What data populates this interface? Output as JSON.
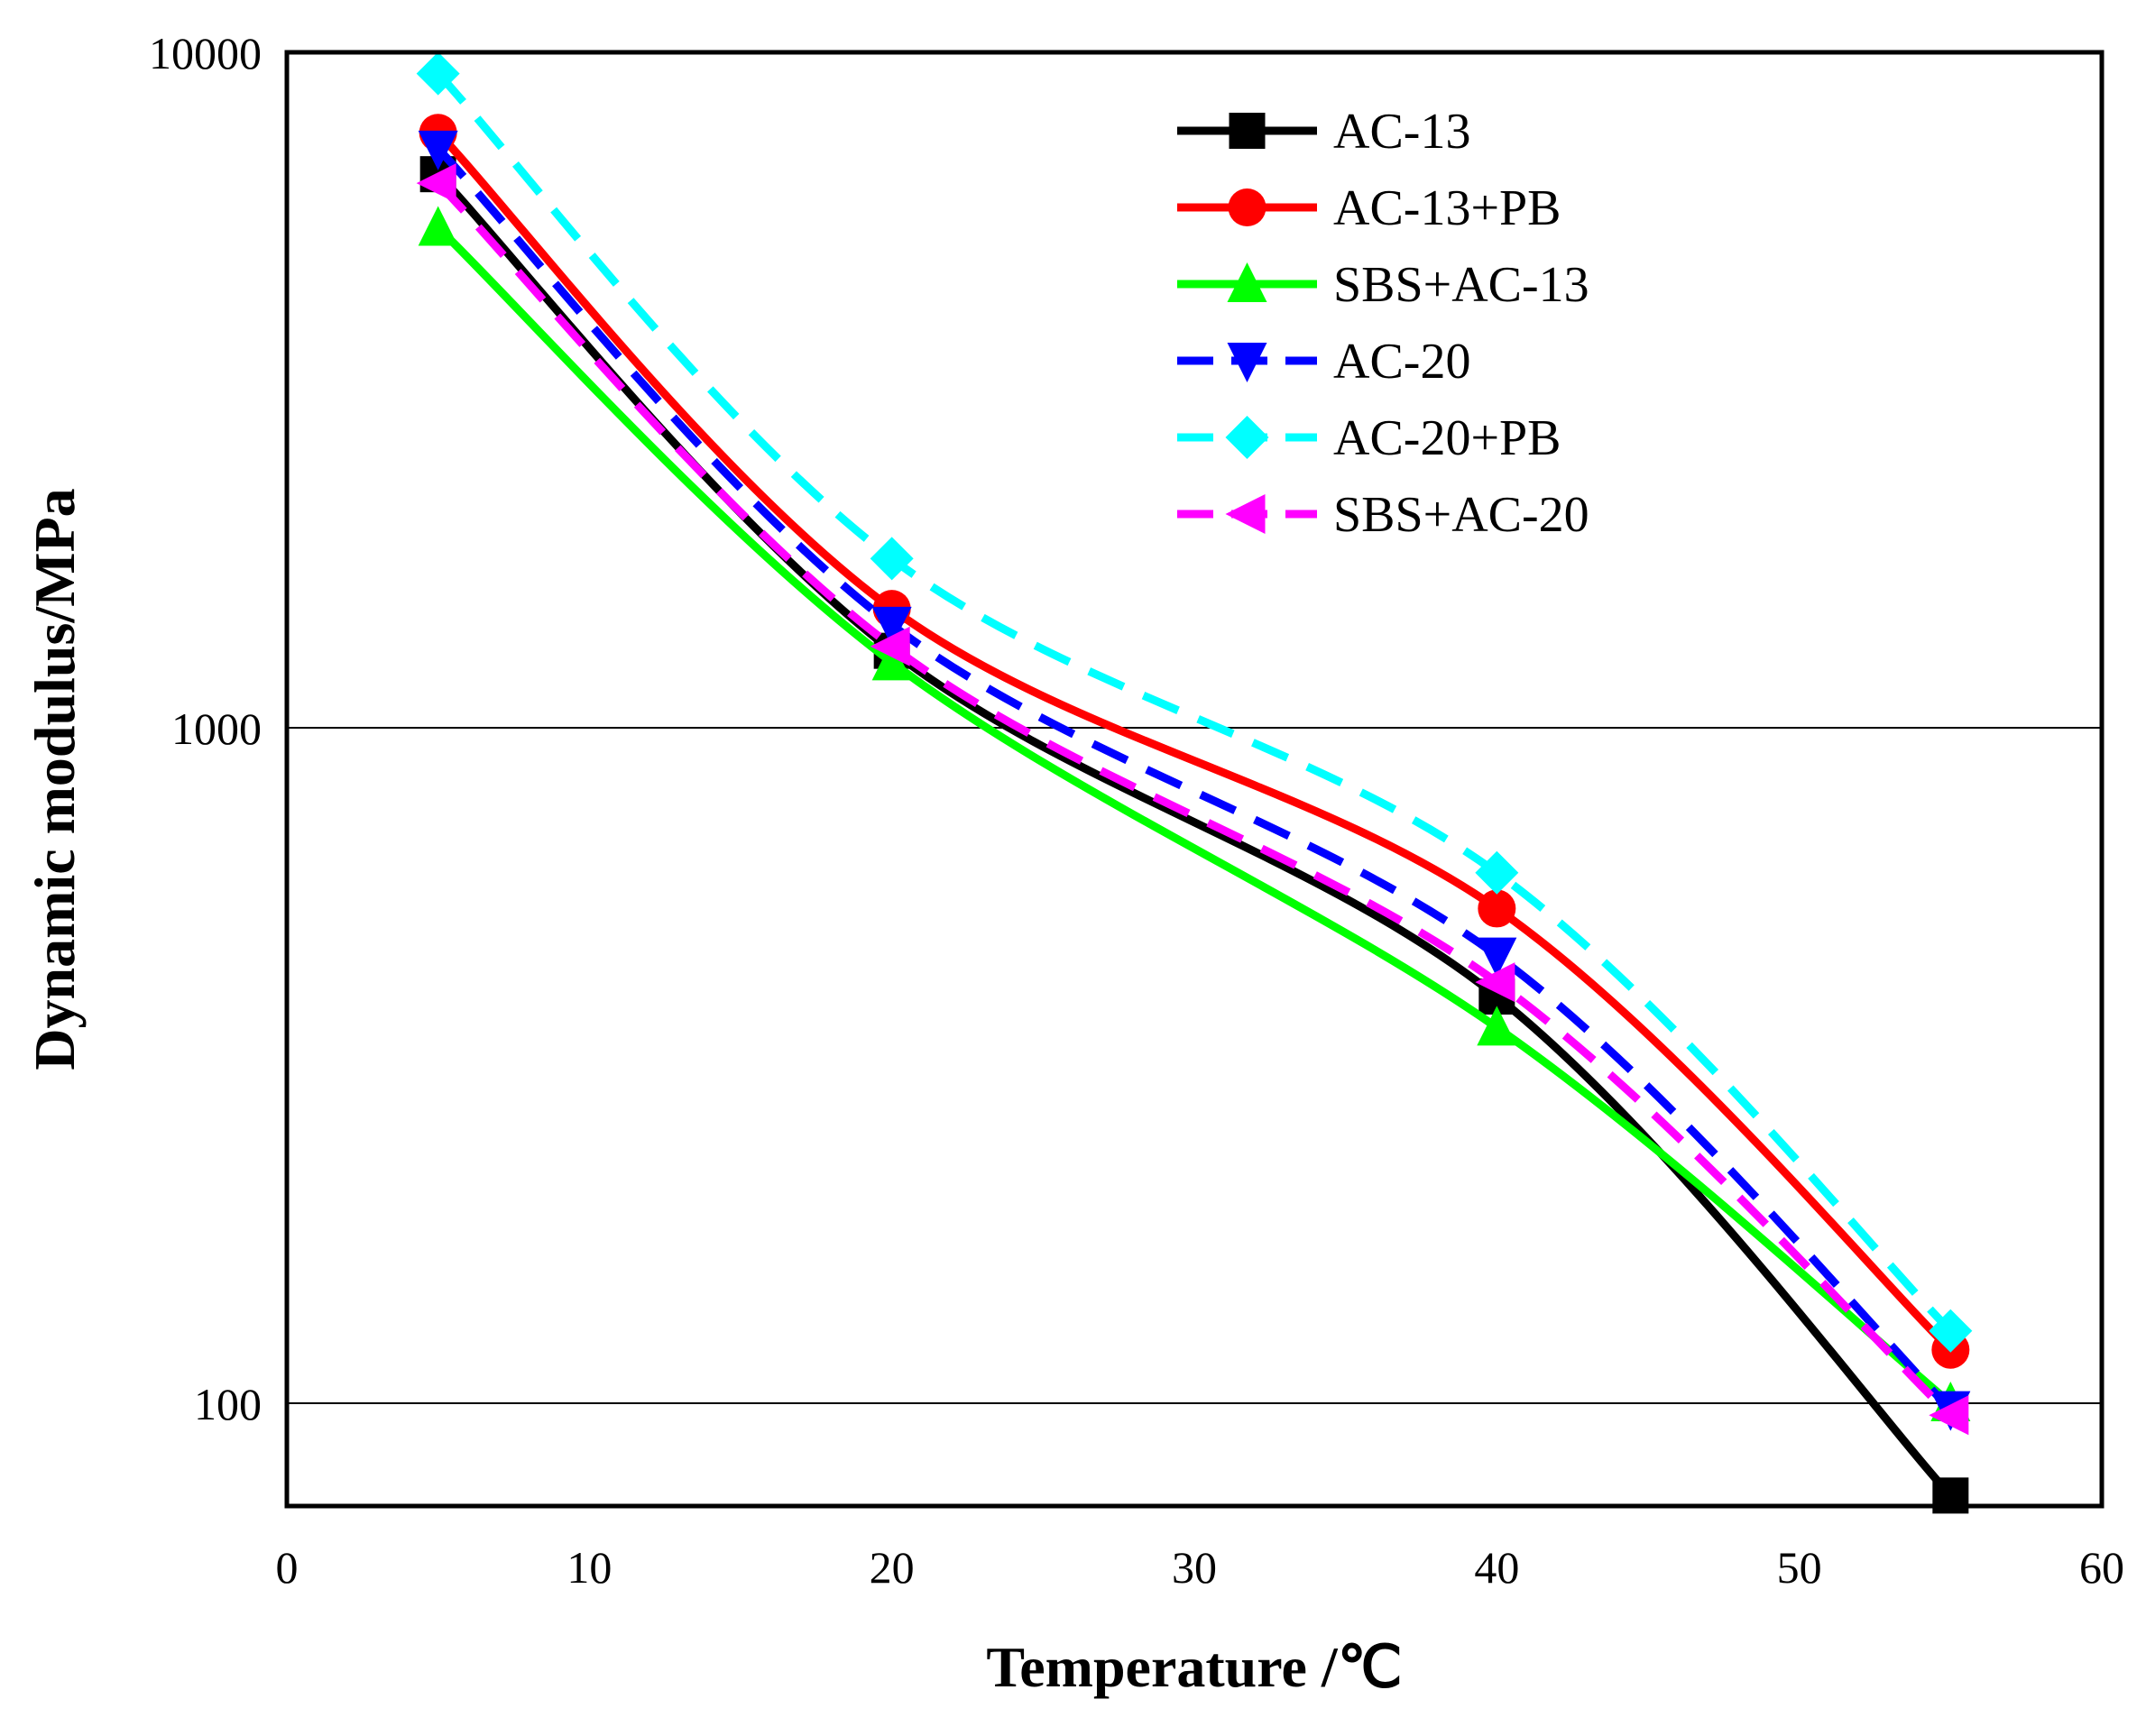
{
  "chart_data": {
    "type": "line",
    "xlabel": "Temperature /℃",
    "ylabel": "Dynamic modulus/MPa",
    "xlim": [
      0,
      60
    ],
    "ylim": [
      70,
      10000
    ],
    "yscale": "log",
    "xticks": [
      0,
      10,
      20,
      30,
      40,
      50,
      60
    ],
    "yticks": [
      100,
      1000,
      10000
    ],
    "grid": "horizontal major lines at 100 and 1000",
    "legend_position": "top-right",
    "x": [
      5,
      20,
      40,
      55
    ],
    "series": [
      {
        "name": "AC-13",
        "values": [
          6600,
          1300,
          400,
          73
        ],
        "color": "#000000",
        "dash": "solid",
        "marker": "square"
      },
      {
        "name": "AC-13+PB",
        "values": [
          7600,
          1500,
          540,
          120
        ],
        "color": "#ff0000",
        "dash": "solid",
        "marker": "circle"
      },
      {
        "name": "SBS+AC-13",
        "values": [
          5500,
          1250,
          360,
          100
        ],
        "color": "#00ff00",
        "dash": "solid",
        "marker": "triangle-up"
      },
      {
        "name": "AC-20",
        "values": [
          7200,
          1420,
          460,
          98
        ],
        "color": "#0000ff",
        "dash": "dashed",
        "marker": "triangle-down"
      },
      {
        "name": "AC-20+PB",
        "values": [
          9300,
          1780,
          610,
          128
        ],
        "color": "#00ffff",
        "dash": "dashed",
        "marker": "diamond"
      },
      {
        "name": "SBS+AC-20",
        "values": [
          6400,
          1320,
          420,
          96
        ],
        "color": "#ff00ff",
        "dash": "dashed",
        "marker": "triangle-left"
      }
    ]
  }
}
